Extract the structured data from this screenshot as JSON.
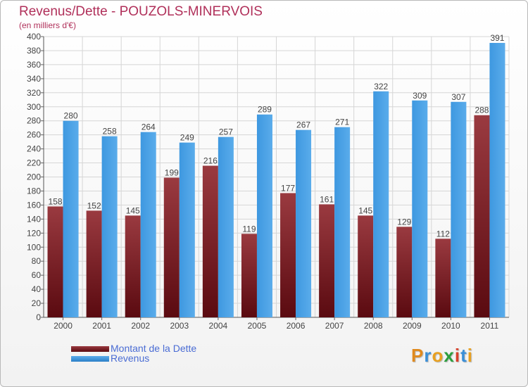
{
  "title": "Revenus/Dette - POUZOLS-MINERVOIS",
  "subtitle": "(en milliers d'€)",
  "logo": {
    "text": "Proxiti",
    "letter_colors": [
      "#e08a1e",
      "#3a8fd8",
      "#e8a020",
      "#2c9e3e",
      "#d8402a",
      "#3a8fd8",
      "#e8a020"
    ]
  },
  "colors": {
    "dette": "#7a1e22",
    "revenus": "#3a93db",
    "label": "#444444",
    "grid": "#d6d6d6"
  },
  "legend": {
    "position": "bottom-left",
    "items": [
      {
        "label": "Montant de la Dette",
        "color": "#7a1e22"
      },
      {
        "label": "Revenus",
        "color": "#3a93db"
      }
    ]
  },
  "chart_data": {
    "type": "bar",
    "title": "Revenus/Dette - POUZOLS-MINERVOIS",
    "subtitle": "(en milliers d'€)",
    "xlabel": "",
    "ylabel": "",
    "ylim": [
      0,
      400
    ],
    "ytick_step": 20,
    "grid": true,
    "categories": [
      "2000",
      "2001",
      "2002",
      "2003",
      "2004",
      "2005",
      "2006",
      "2007",
      "2008",
      "2009",
      "2010",
      "2011"
    ],
    "series": [
      {
        "name": "Montant de la Dette",
        "values": [
          158,
          152,
          145,
          199,
          216,
          119,
          177,
          161,
          145,
          129,
          112,
          288
        ]
      },
      {
        "name": "Revenus",
        "values": [
          280,
          258,
          264,
          249,
          257,
          289,
          267,
          271,
          322,
          309,
          307,
          391
        ]
      }
    ]
  }
}
